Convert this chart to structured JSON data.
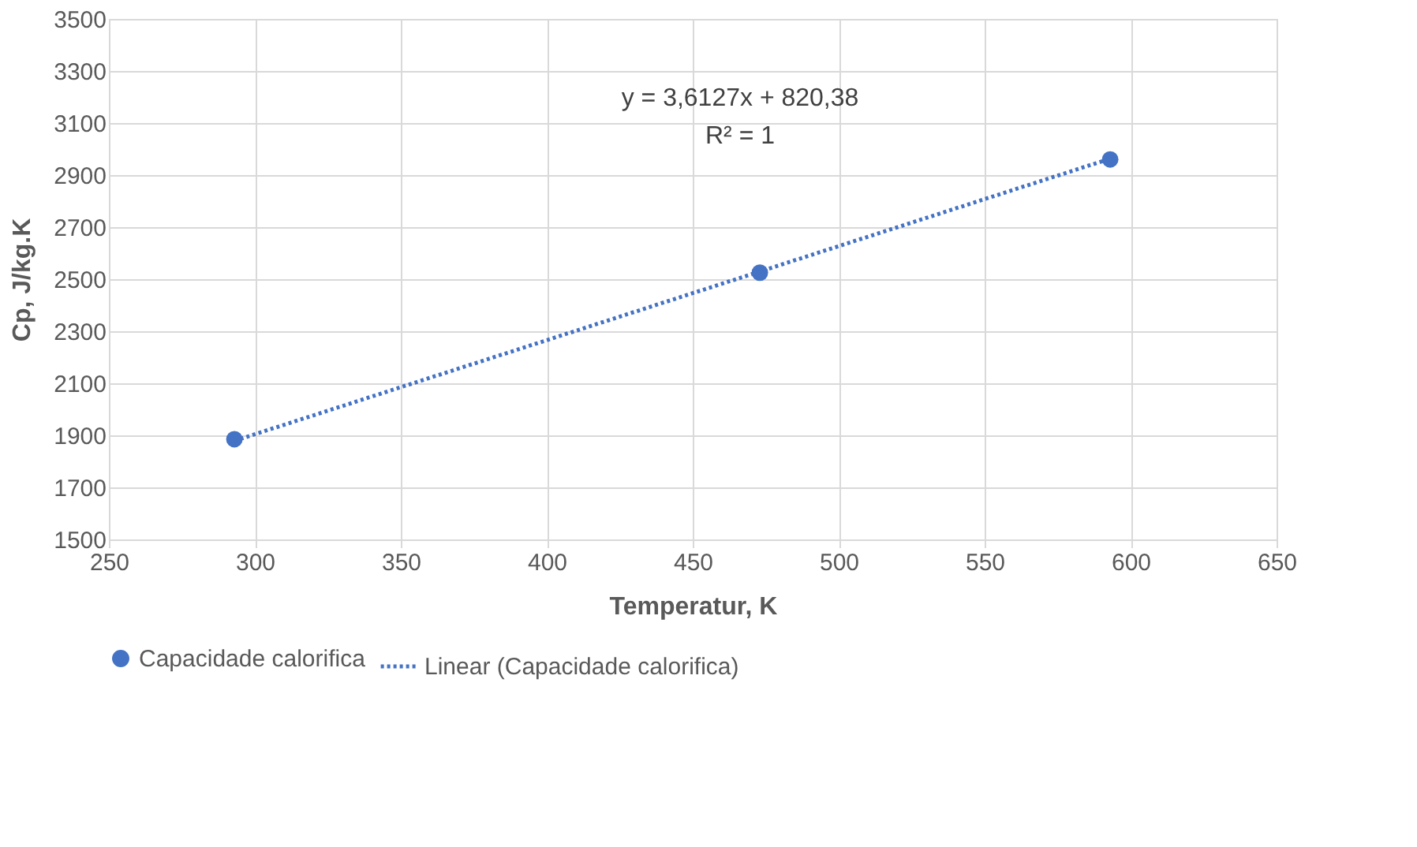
{
  "chart_data": {
    "type": "scatter",
    "xlabel": "Temperatur, K",
    "ylabel": "Cp,  J/kg.K",
    "x": [
      293,
      473,
      593
    ],
    "series": [
      {
        "name": "Capacidade calorifica",
        "color": "#4472c4",
        "values": [
          1885,
          2525,
          2960
        ],
        "marker": "circle"
      },
      {
        "name": "Linear (Capacidade calorifica)",
        "type": "line",
        "color": "#4472c4",
        "x": [
          293,
          593
        ],
        "values": [
          1879,
          2963
        ],
        "line_style": "dotted",
        "marker": "none"
      }
    ],
    "annotations": [
      "y = 3,6127x + 820,38",
      "R² = 1"
    ],
    "xlim": [
      250,
      650
    ],
    "xticks": [
      250,
      300,
      350,
      400,
      450,
      500,
      550,
      600,
      650
    ],
    "ylim": [
      1500,
      3500
    ],
    "yticks": [
      1500,
      1700,
      1900,
      2100,
      2300,
      2500,
      2700,
      2900,
      3100,
      3300,
      3500
    ],
    "grid": true,
    "legend": "bottom"
  }
}
